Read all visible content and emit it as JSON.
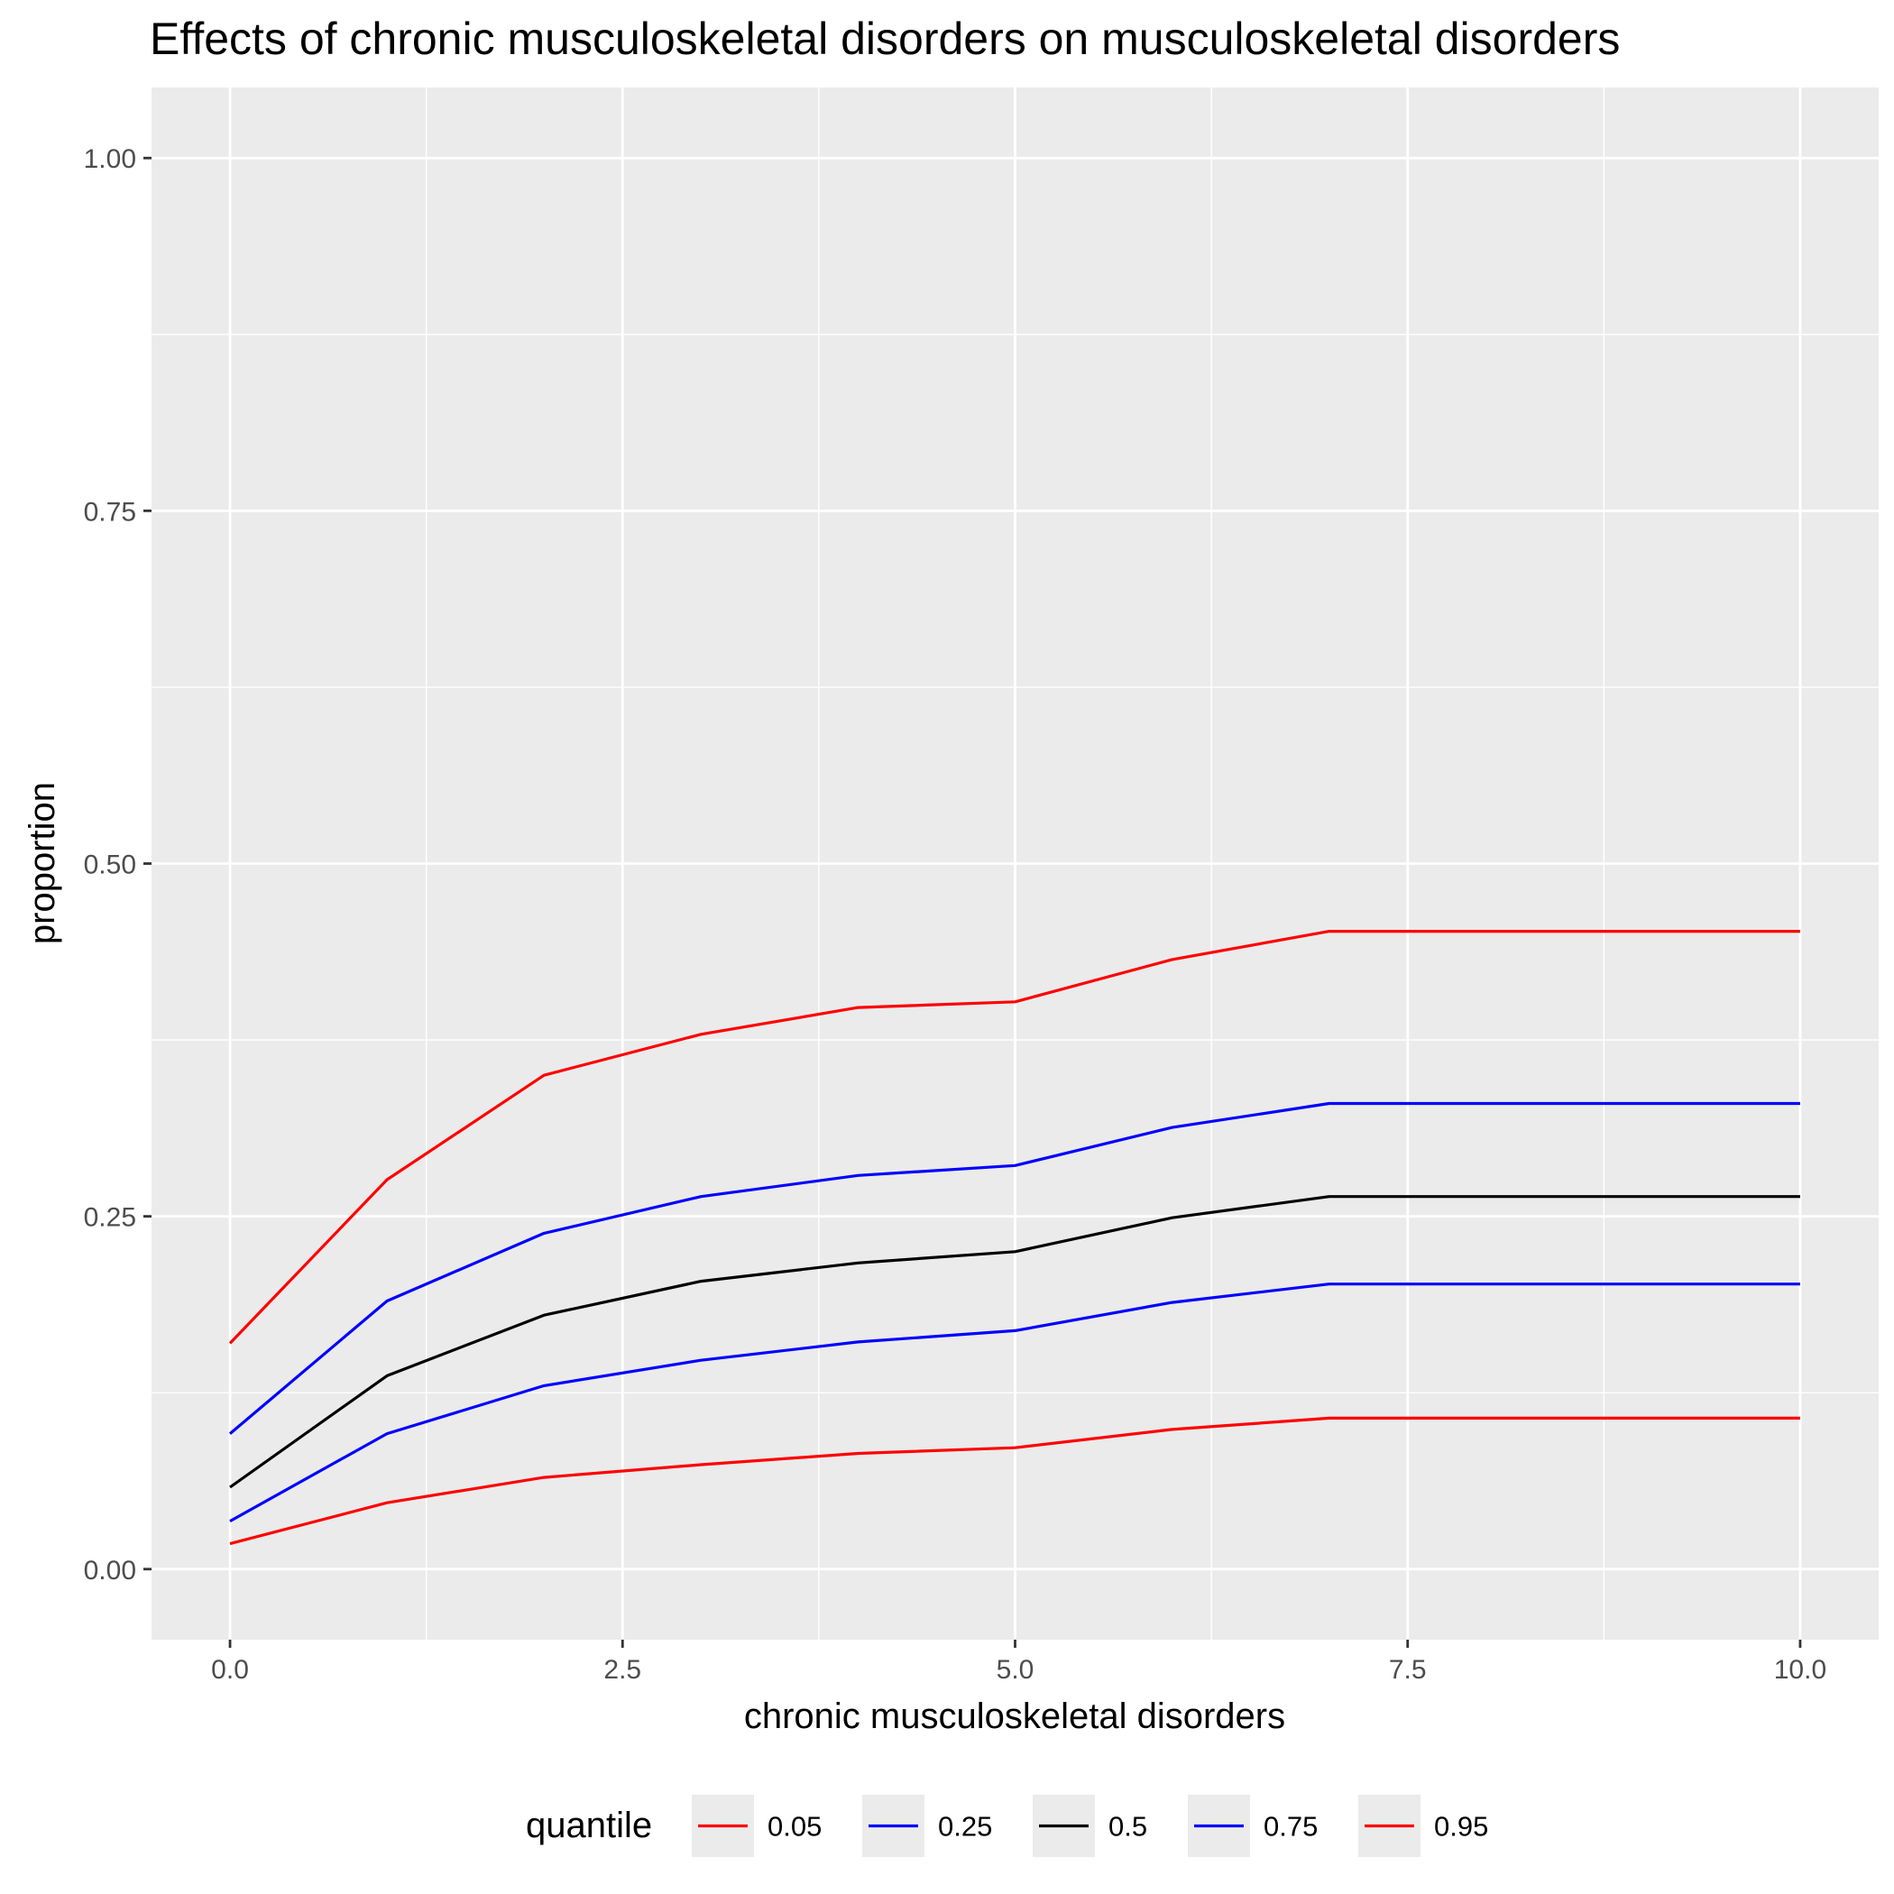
{
  "chart_data": {
    "type": "line",
    "title": "Effects of chronic musculoskeletal disorders on musculoskeletal disorders",
    "xlabel": "chronic musculoskeletal disorders",
    "ylabel": "proportion",
    "xlim": [
      -0.5,
      10.5
    ],
    "ylim": [
      -0.05,
      1.05
    ],
    "x_ticks": [
      0,
      2.5,
      5,
      7.5,
      10
    ],
    "x_tick_labels": [
      "0.0",
      "2.5",
      "5.0",
      "7.5",
      "10.0"
    ],
    "y_ticks": [
      0,
      0.25,
      0.5,
      0.75,
      1
    ],
    "y_tick_labels": [
      "0.00",
      "0.25",
      "0.50",
      "0.75",
      "1.00"
    ],
    "grid": true,
    "legend_position": "bottom",
    "legend_title": "quantile",
    "background_color": "#ebebeb",
    "x": [
      0,
      1,
      2,
      3,
      4,
      5,
      6,
      7,
      10
    ],
    "series": [
      {
        "name": "0.05",
        "color": "#ff0000",
        "values": [
          0.018,
          0.047,
          0.065,
          0.074,
          0.082,
          0.086,
          0.099,
          0.107,
          0.107
        ]
      },
      {
        "name": "0.25",
        "color": "#0000ff",
        "values": [
          0.034,
          0.096,
          0.13,
          0.148,
          0.161,
          0.169,
          0.189,
          0.202,
          0.202
        ]
      },
      {
        "name": "0.5",
        "color": "#000000",
        "values": [
          0.058,
          0.137,
          0.18,
          0.204,
          0.217,
          0.225,
          0.249,
          0.264,
          0.264
        ]
      },
      {
        "name": "0.75",
        "color": "#0000ff",
        "values": [
          0.096,
          0.19,
          0.238,
          0.264,
          0.279,
          0.286,
          0.313,
          0.33,
          0.33
        ]
      },
      {
        "name": "0.95",
        "color": "#ff0000",
        "values": [
          0.16,
          0.276,
          0.35,
          0.379,
          0.398,
          0.402,
          0.432,
          0.452,
          0.452
        ]
      }
    ]
  }
}
